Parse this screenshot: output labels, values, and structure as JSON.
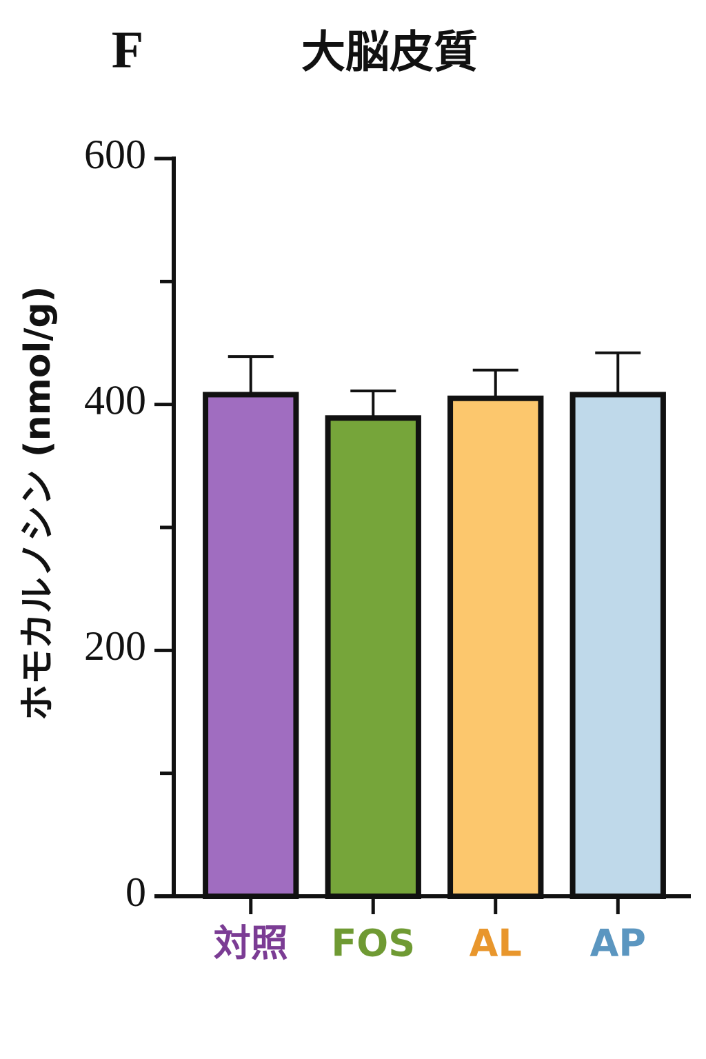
{
  "chart_data": {
    "type": "bar",
    "panel_label": "F",
    "title": "大脳皮質",
    "y_label": "ホモカルノシン (nmol/g)",
    "categories": [
      "対照",
      "FOS",
      "AL",
      "AP"
    ],
    "values": [
      408,
      389,
      405,
      408
    ],
    "errors": [
      31,
      22,
      23,
      34
    ],
    "colors": [
      "#a06dc0",
      "#76a53a",
      "#fcc76d",
      "#bfd9ea"
    ],
    "label_colors": [
      "#7b3c94",
      "#6f9a33",
      "#e8962c",
      "#5b96c0"
    ],
    "ylim": [
      0,
      600
    ],
    "yticks": [
      0,
      200,
      400,
      600
    ],
    "yminorticks": [
      100,
      300,
      500
    ]
  }
}
